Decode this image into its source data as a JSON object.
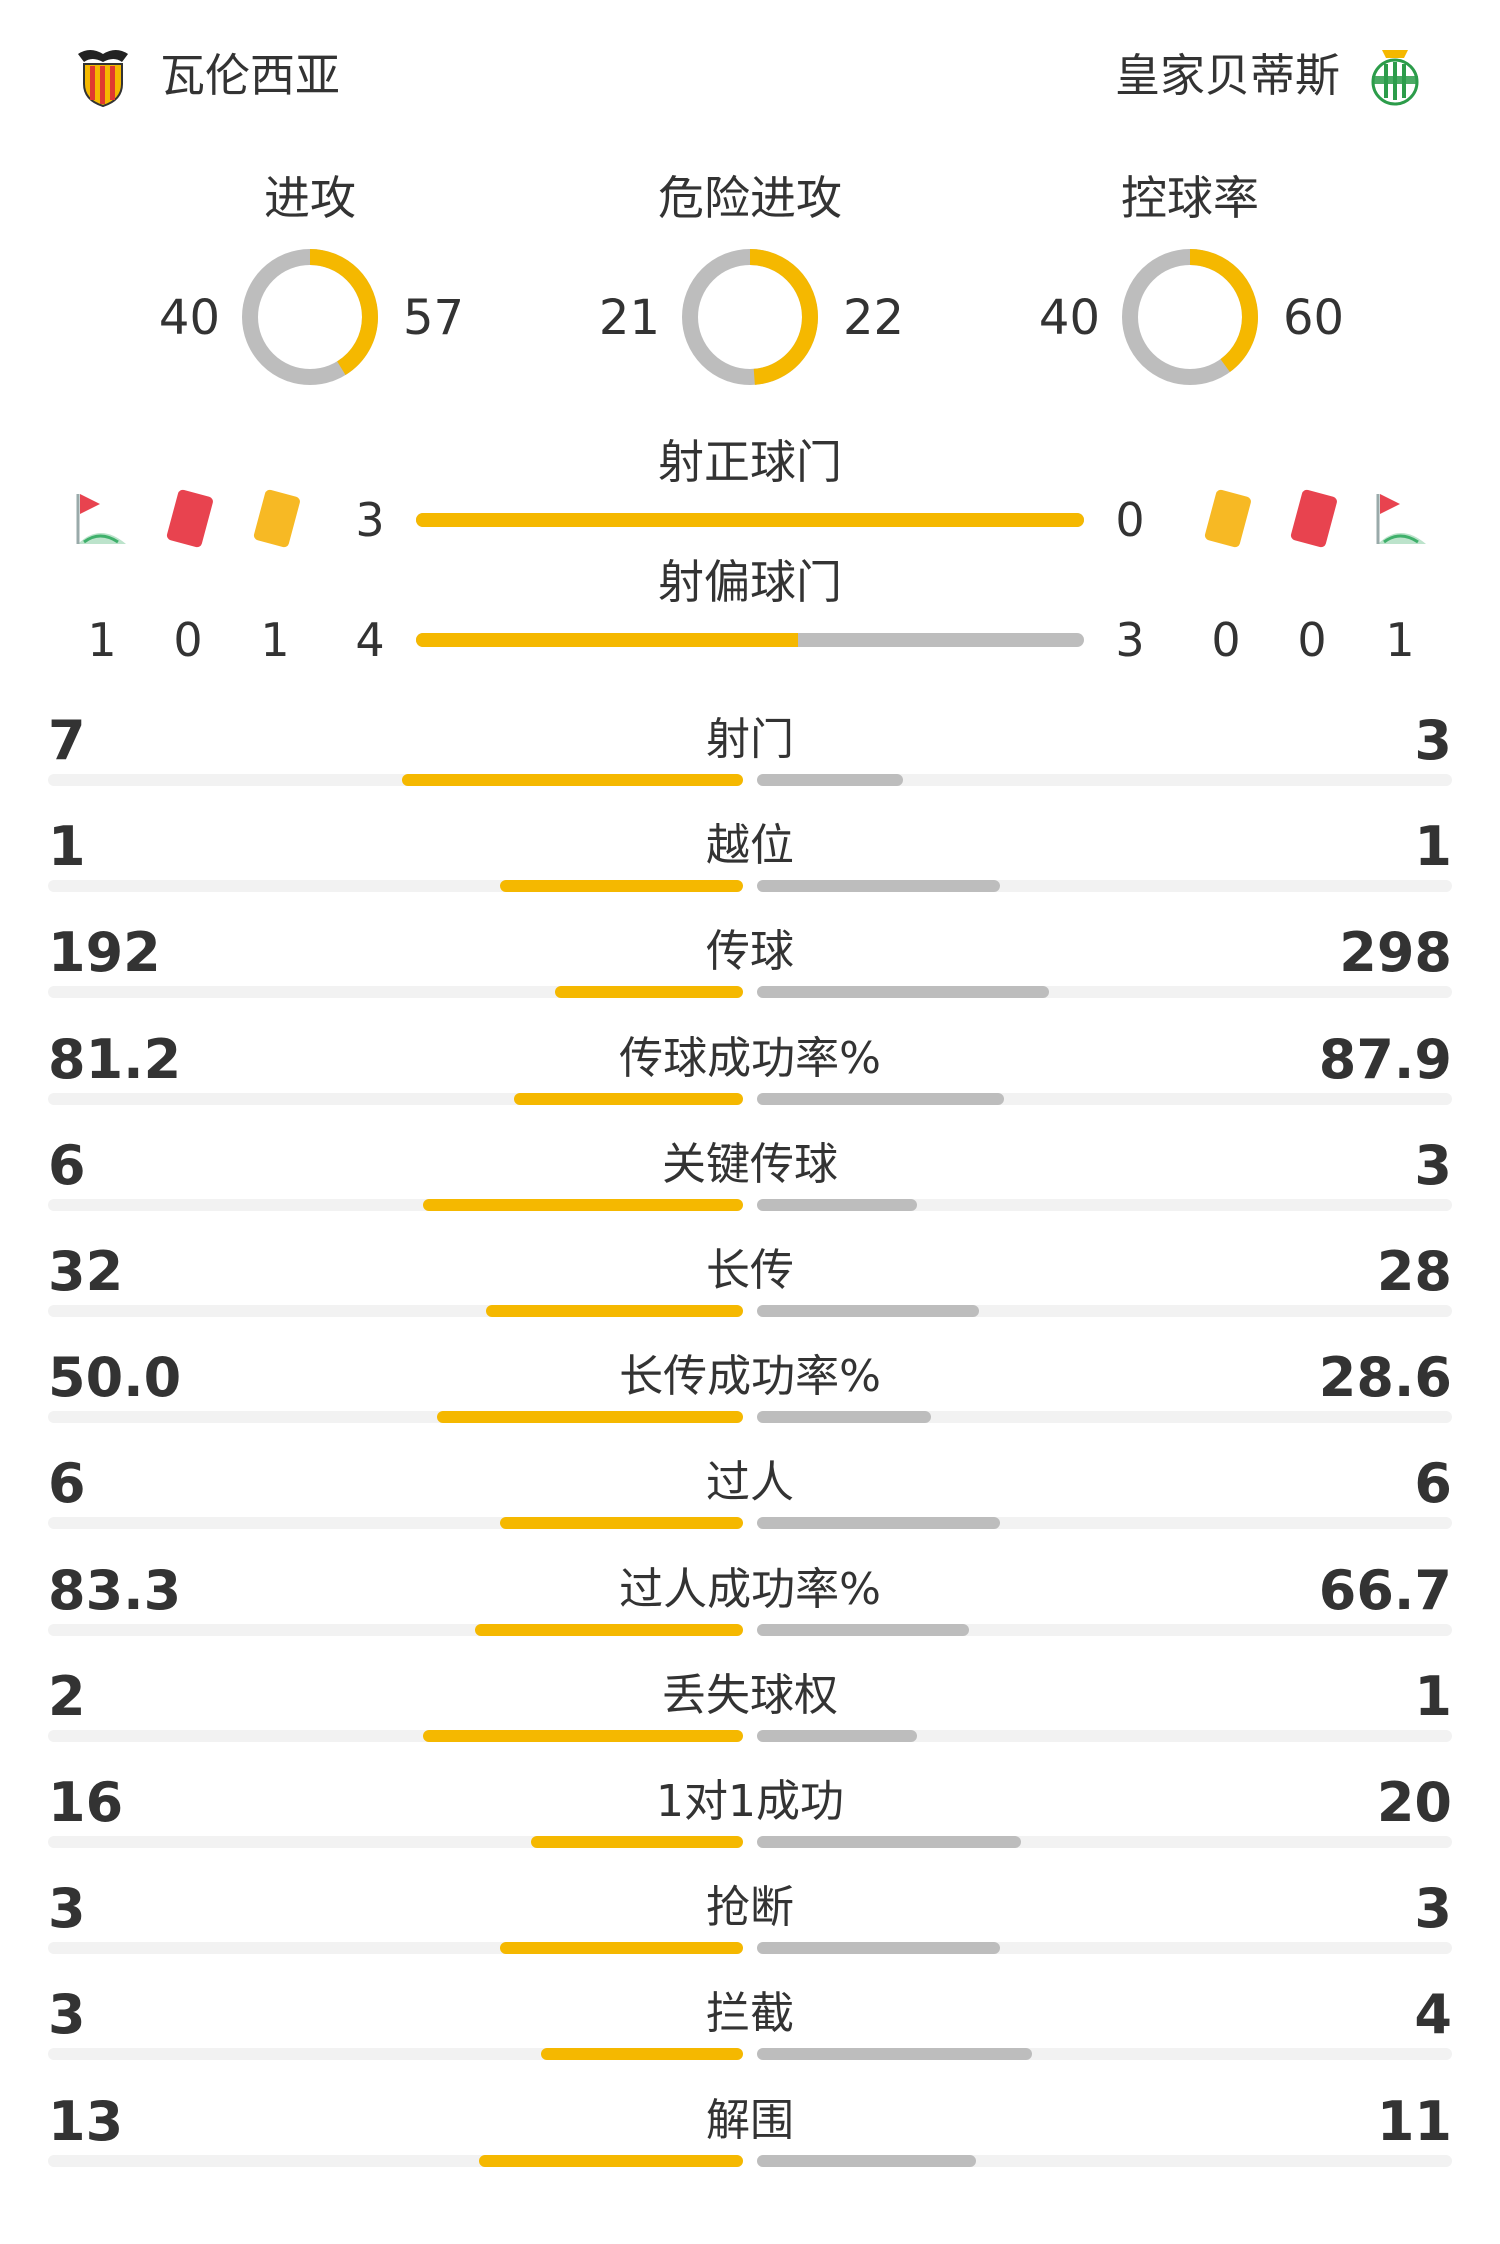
{
  "header": {
    "home_team": "瓦伦西亚",
    "away_team": "皇家贝蒂斯",
    "home_logo_icon": "valencia-bat-crest-icon",
    "away_logo_icon": "betis-crest-icon"
  },
  "donuts": [
    {
      "title": "进攻",
      "home": 40,
      "away": 57
    },
    {
      "title": "危险进攻",
      "home": 21,
      "away": 22
    },
    {
      "title": "控球率",
      "home": 40,
      "away": 60
    }
  ],
  "shots": {
    "on_target": {
      "title": "射正球门",
      "home": 3,
      "away": 0
    },
    "off_target": {
      "title": "射偏球门",
      "home": 4,
      "away": 3
    }
  },
  "discipline": {
    "home": {
      "corners": 1,
      "red_cards": 0,
      "yellow_cards": 1
    },
    "away": {
      "yellow_cards": 0,
      "red_cards": 0,
      "corners": 1
    },
    "icons": {
      "corner": "corner-flag-icon",
      "red": "red-card-icon",
      "yellow": "yellow-card-icon"
    }
  },
  "colors": {
    "home": "#f5b800",
    "away": "#bdbdbd",
    "track": "#f2f2f2",
    "red_card": "#e8434f",
    "yellow_card": "#f7b924",
    "corner_flag": "#e8434f",
    "corner_field": "#3fb06b"
  },
  "stats": [
    {
      "label": "射门",
      "home": "7",
      "away": "3",
      "home_fraction": 0.49,
      "away_fraction": 0.21
    },
    {
      "label": "越位",
      "home": "1",
      "away": "1",
      "home_fraction": 0.35,
      "away_fraction": 0.35
    },
    {
      "label": "传球",
      "home": "192",
      "away": "298",
      "home_fraction": 0.27,
      "away_fraction": 0.42
    },
    {
      "label": "传球成功率%",
      "home": "81.2",
      "away": "87.9",
      "home_fraction": 0.33,
      "away_fraction": 0.355
    },
    {
      "label": "关键传球",
      "home": "6",
      "away": "3",
      "home_fraction": 0.46,
      "away_fraction": 0.23
    },
    {
      "label": "长传",
      "home": "32",
      "away": "28",
      "home_fraction": 0.37,
      "away_fraction": 0.32
    },
    {
      "label": "长传成功率%",
      "home": "50.0",
      "away": "28.6",
      "home_fraction": 0.44,
      "away_fraction": 0.25
    },
    {
      "label": "过人",
      "home": "6",
      "away": "6",
      "home_fraction": 0.35,
      "away_fraction": 0.35
    },
    {
      "label": "过人成功率%",
      "home": "83.3",
      "away": "66.7",
      "home_fraction": 0.385,
      "away_fraction": 0.305
    },
    {
      "label": "丢失球权",
      "home": "2",
      "away": "1",
      "home_fraction": 0.46,
      "away_fraction": 0.23
    },
    {
      "label": "1对1成功",
      "home": "16",
      "away": "20",
      "home_fraction": 0.305,
      "away_fraction": 0.38
    },
    {
      "label": "抢断",
      "home": "3",
      "away": "3",
      "home_fraction": 0.35,
      "away_fraction": 0.35
    },
    {
      "label": "拦截",
      "home": "3",
      "away": "4",
      "home_fraction": 0.29,
      "away_fraction": 0.395
    },
    {
      "label": "解围",
      "home": "13",
      "away": "11",
      "home_fraction": 0.38,
      "away_fraction": 0.315
    }
  ]
}
